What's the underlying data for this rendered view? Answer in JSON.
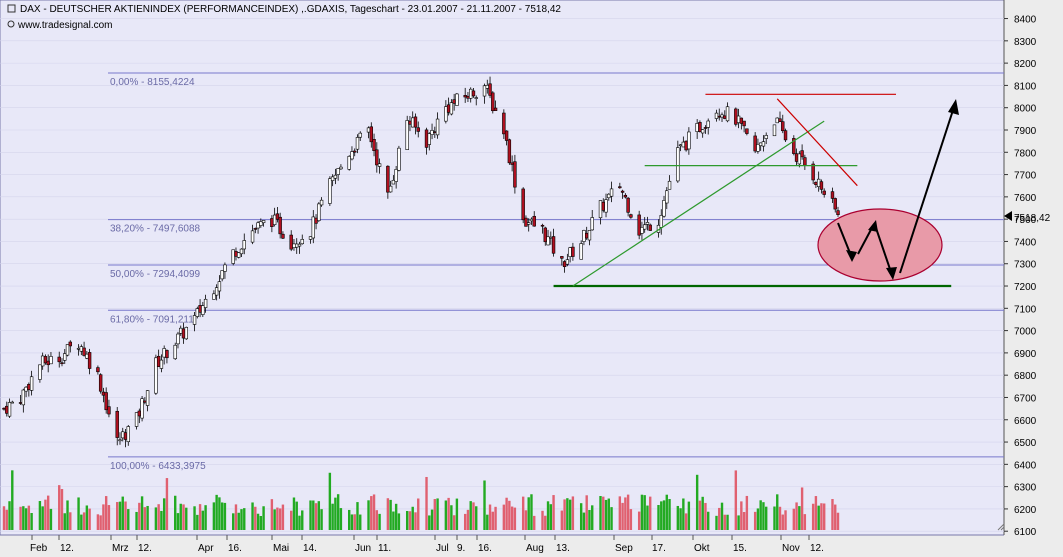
{
  "header": {
    "title": "DAX  - DEUTSCHER AKTIENINDEX (PERFORMANCEINDEX) ,.GDAXIS, Tageschart - 23.01.2007 - 21.11.2007 - 7518,42",
    "source": "www.tradesignal.com"
  },
  "chart_data": {
    "type": "candlestick",
    "y_axis": {
      "ticks": [
        "6100",
        "6200",
        "6300",
        "6400",
        "6500",
        "6600",
        "6700",
        "6800",
        "6900",
        "7000",
        "7100",
        "7200",
        "7300",
        "7400",
        "7500",
        "7600",
        "7700",
        "7800",
        "7900",
        "8000",
        "8100",
        "8200",
        "8300",
        "8400"
      ],
      "ylim": [
        6083,
        8475
      ],
      "position": "right"
    },
    "x_axis": {
      "labels": [
        "Feb",
        "12.",
        "Mrz",
        "12.",
        "Apr",
        "16.",
        "Mai",
        "14.",
        "Jun",
        "11.",
        "Jul",
        "9.",
        "16.",
        "Aug",
        "13.",
        "Sep",
        "17.",
        "Okt",
        "15.",
        "Nov",
        "12."
      ]
    },
    "last_price_label": "7518,42",
    "fibonacci_levels": [
      {
        "label": "0,00% - 8155,4224",
        "value": 8155.4224
      },
      {
        "label": "38,20% - 7497,6088",
        "value": 7497.6088
      },
      {
        "label": "50,00% - 7294,4099",
        "value": 7294.4099
      },
      {
        "label": "61,80% - 7091,211",
        "value": 7091.211
      },
      {
        "label": "100,00% - 6433,3975",
        "value": 6433.3975
      }
    ],
    "price_path": [
      [
        "2007-01-23",
        6650
      ],
      [
        "2007-01-29",
        6700
      ],
      [
        "2007-02-05",
        6850
      ],
      [
        "2007-02-12",
        6880
      ],
      [
        "2007-02-19",
        6950
      ],
      [
        "2007-02-26",
        6800
      ],
      [
        "2007-03-05",
        6500
      ],
      [
        "2007-03-12",
        6600
      ],
      [
        "2007-03-19",
        6850
      ],
      [
        "2007-03-26",
        6950
      ],
      [
        "2007-04-02",
        7050
      ],
      [
        "2007-04-09",
        7200
      ],
      [
        "2007-04-16",
        7350
      ],
      [
        "2007-04-23",
        7450
      ],
      [
        "2007-04-30",
        7500
      ],
      [
        "2007-05-07",
        7400
      ],
      [
        "2007-05-14",
        7450
      ],
      [
        "2007-05-21",
        7650
      ],
      [
        "2007-05-28",
        7800
      ],
      [
        "2007-06-04",
        7900
      ],
      [
        "2007-06-11",
        7600
      ],
      [
        "2007-06-18",
        7950
      ],
      [
        "2007-06-25",
        7850
      ],
      [
        "2007-07-02",
        8000
      ],
      [
        "2007-07-09",
        8050
      ],
      [
        "2007-07-16",
        8100
      ],
      [
        "2007-07-23",
        7900
      ],
      [
        "2007-07-30",
        7500
      ],
      [
        "2007-08-06",
        7450
      ],
      [
        "2007-08-13",
        7300
      ],
      [
        "2007-08-20",
        7400
      ],
      [
        "2007-08-27",
        7550
      ],
      [
        "2007-09-03",
        7650
      ],
      [
        "2007-09-10",
        7450
      ],
      [
        "2007-09-17",
        7500
      ],
      [
        "2007-09-24",
        7800
      ],
      [
        "2007-10-01",
        7900
      ],
      [
        "2007-10-08",
        8000
      ],
      [
        "2007-10-15",
        7950
      ],
      [
        "2007-10-22",
        7800
      ],
      [
        "2007-10-29",
        7950
      ],
      [
        "2007-11-05",
        7800
      ],
      [
        "2007-11-12",
        7700
      ],
      [
        "2007-11-21",
        7518
      ]
    ],
    "trendlines": [
      {
        "name": "resistance-top",
        "color": "#cc0000",
        "from": [
          "2007-10-04",
          8060
        ],
        "to": [
          "2007-12-12",
          8060
        ]
      },
      {
        "name": "support-low",
        "color": "#006600",
        "from": [
          "2007-08-10",
          7200
        ],
        "to": [
          "2008-01-01",
          7200
        ]
      },
      {
        "name": "horizontal-7740",
        "color": "#2e9a2e",
        "from": [
          "2007-09-12",
          7740
        ],
        "to": [
          "2007-11-28",
          7740
        ]
      },
      {
        "name": "rising-support",
        "color": "#2e9a2e",
        "from": [
          "2007-08-17",
          7200
        ],
        "to": [
          "2007-11-16",
          7940
        ]
      },
      {
        "name": "falling-resistance",
        "color": "#cc0000",
        "from": [
          "2007-10-30",
          8040
        ],
        "to": [
          "2007-11-28",
          7650
        ]
      }
    ]
  },
  "colors": {
    "background": "#e8e8f8",
    "up_candle": "#ffffff",
    "down_candle": "#b01020",
    "volume_up": "#22aa22",
    "volume_down": "#e06070",
    "fib_line": "#7777cc",
    "ellipse_fill": "#e89aa8",
    "ellipse_stroke": "#aa0030"
  }
}
